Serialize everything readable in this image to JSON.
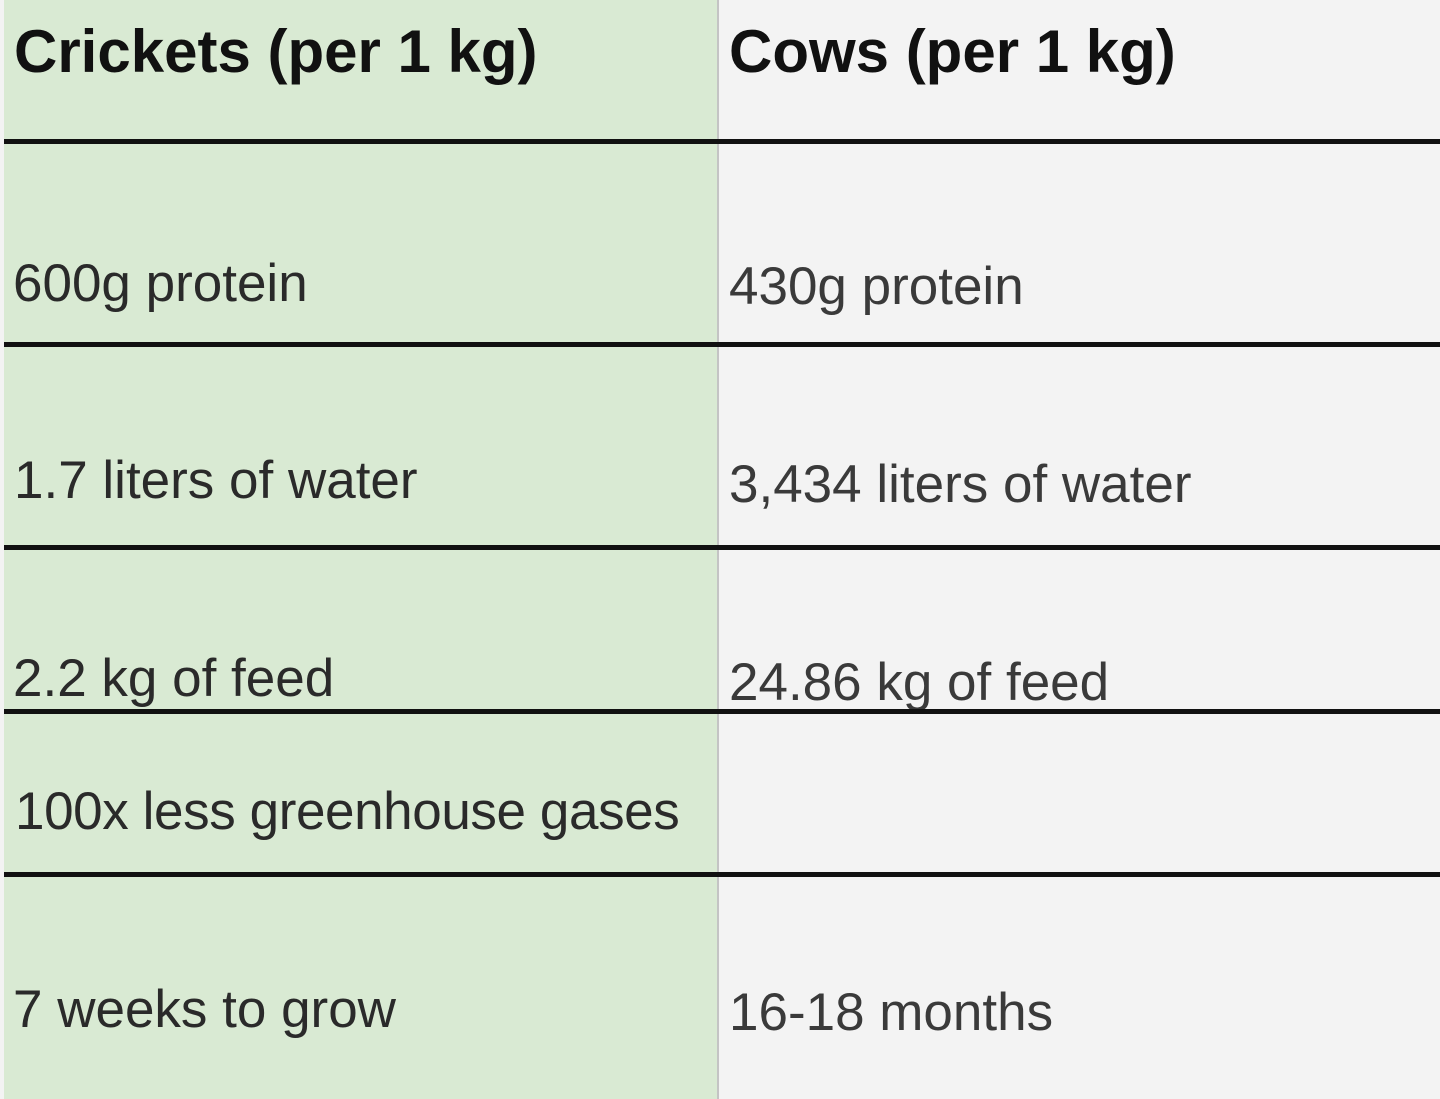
{
  "table": {
    "headers": [
      "Crickets (per 1 kg)",
      "Cows (per 1 kg)"
    ],
    "rows": [
      [
        "600g protein",
        "430g protein"
      ],
      [
        "1.7 liters of water",
        "3,434 liters of water"
      ],
      [
        "2.2 kg of feed",
        "24.86 kg of feed"
      ],
      [
        "100x less greenhouse gases",
        ""
      ],
      [
        "7 weeks to grow",
        "16-18 months"
      ]
    ]
  },
  "colors": {
    "left_column_bg": "#d9ead3",
    "right_column_bg": "#f3f3f3",
    "rule": "#111111"
  }
}
